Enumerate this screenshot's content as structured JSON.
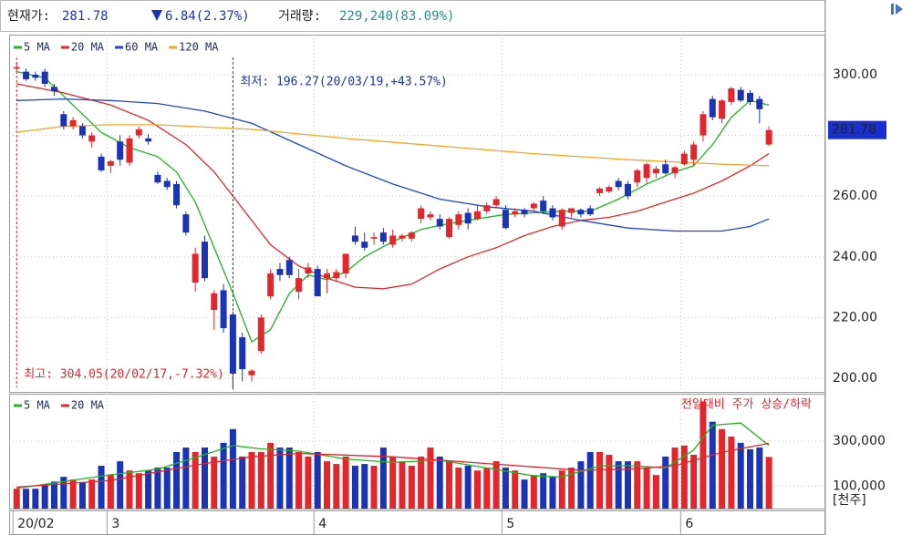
{
  "header": {
    "price_label": "현재가:",
    "change": "6.84(2.37%)",
    "volume_label": "거래량:",
    "volume": "229,240(83.09%)"
  },
  "chart_data": [
    {
      "type": "candlestick",
      "open": [
        302,
        301,
        300,
        301,
        296,
        287,
        283,
        283,
        278,
        273,
        270,
        278,
        271,
        280,
        279,
        267,
        265,
        264,
        254,
        231.5,
        245,
        222.5,
        229,
        221,
        213.5,
        201,
        209,
        227,
        236,
        239,
        228.5,
        234.5,
        236,
        233,
        233,
        234.5,
        247,
        245,
        246,
        248,
        244,
        246,
        246,
        252.5,
        253,
        252.5,
        246.5,
        250.5,
        254.5,
        252.5,
        255,
        257,
        255.5,
        254,
        255.5,
        256,
        258.5,
        256,
        250,
        254.5,
        255.5,
        256,
        261,
        261.5,
        265,
        264,
        264.5,
        266,
        267.5,
        270.5,
        267.5,
        270.5,
        272,
        280,
        292,
        285.5,
        291,
        295,
        294,
        292,
        277
      ],
      "high": [
        304.05,
        302,
        301,
        302,
        297,
        288,
        286,
        284,
        281,
        274,
        272,
        280,
        280,
        283,
        280.5,
        268,
        266,
        265,
        255,
        243,
        247,
        229,
        231,
        222,
        215,
        203,
        221,
        236,
        238,
        240,
        236,
        238,
        237,
        236,
        236,
        241,
        250,
        248,
        248,
        249.5,
        249,
        247.5,
        248.5,
        257,
        255,
        254,
        253,
        255,
        256,
        257,
        258,
        260,
        257,
        256,
        256,
        258,
        260,
        257,
        256,
        256,
        256,
        257,
        263,
        263.5,
        266,
        265,
        269,
        271,
        270,
        272,
        270,
        275,
        278,
        288,
        293,
        292,
        296,
        296,
        295,
        293,
        283
      ],
      "low": [
        301,
        298,
        298,
        296,
        293,
        282,
        282,
        279,
        276,
        268,
        267.5,
        270,
        270,
        279,
        277,
        264,
        262,
        256,
        247,
        228.5,
        232,
        216,
        215,
        196.27,
        199,
        199,
        208,
        226,
        232,
        233,
        226,
        233,
        227,
        228,
        232,
        233,
        244,
        242,
        244,
        244,
        243,
        245,
        245,
        251,
        252,
        249,
        246,
        249,
        249,
        252,
        254,
        256,
        249,
        253,
        253,
        255,
        254,
        252,
        249,
        253,
        253,
        253.5,
        260,
        261,
        262,
        259,
        263,
        264,
        266,
        267,
        266,
        270,
        270,
        278,
        285,
        284,
        290,
        291,
        290,
        284,
        276.5
      ],
      "close": [
        302.5,
        298.5,
        299,
        297,
        294.5,
        283,
        285,
        280,
        280,
        268.5,
        271.5,
        272,
        279,
        282,
        278,
        264.5,
        263,
        257,
        248,
        241,
        233,
        228,
        216.5,
        201.5,
        203,
        202.5,
        220,
        234.5,
        234,
        234,
        233,
        236.5,
        227,
        234.5,
        235,
        241,
        245,
        243,
        246.5,
        245,
        247,
        247,
        248,
        256,
        254,
        250,
        252.5,
        254,
        251,
        255,
        257,
        259,
        249.5,
        255,
        254,
        257.5,
        255,
        253,
        255.5,
        256,
        254,
        254,
        262.5,
        263,
        263,
        260,
        268.5,
        270.5,
        269,
        267.5,
        269.5,
        274,
        277,
        287,
        286,
        291.5,
        295.5,
        291.5,
        291,
        288.62,
        281.78
      ],
      "up_color": "#e3262c",
      "down_color": "#1b33b5",
      "series": [
        {
          "name": "5 MA",
          "color": "#1fb51f",
          "x": [
            0,
            3,
            6,
            9,
            12,
            15,
            17,
            19,
            21,
            23,
            25,
            27,
            29,
            31,
            33,
            35,
            37,
            40,
            43,
            46,
            49,
            52,
            55,
            58,
            61,
            64,
            67,
            70,
            72,
            74,
            76,
            78,
            80
          ],
          "values": [
            301,
            299,
            290,
            281,
            276,
            273,
            268,
            258,
            243,
            228,
            212,
            216,
            228,
            234,
            232.5,
            235,
            240,
            245,
            249,
            251,
            252.5,
            254,
            254.5,
            255,
            255,
            259,
            264,
            268,
            270,
            277,
            286,
            291.5,
            290
          ]
        },
        {
          "name": "20 MA",
          "color": "#e3262c",
          "x": [
            0,
            5,
            10,
            14,
            18,
            21,
            24,
            27,
            30,
            33,
            36,
            39,
            42,
            45,
            48,
            51,
            54,
            57,
            60,
            63,
            66,
            69,
            72,
            75,
            78,
            80
          ],
          "values": [
            297,
            294,
            290,
            285,
            277,
            268,
            256,
            244,
            237,
            233,
            230,
            229.5,
            231,
            236,
            240,
            243,
            247,
            250,
            252,
            253,
            255,
            258,
            261,
            265,
            270,
            274
          ]
        },
        {
          "name": "60 MA",
          "color": "#2146c7",
          "x": [
            0,
            5,
            10,
            15,
            20,
            25,
            30,
            35,
            40,
            45,
            50,
            55,
            60,
            65,
            70,
            75,
            78,
            80
          ],
          "values": [
            291.5,
            292,
            291.5,
            290.5,
            288,
            284,
            277,
            270,
            264,
            259,
            256.5,
            255,
            252,
            249.5,
            248.5,
            248.5,
            250,
            252.5
          ]
        },
        {
          "name": "120 MA",
          "color": "#f5a623",
          "x": [
            0,
            5,
            10,
            15,
            25,
            35,
            45,
            55,
            65,
            75,
            80
          ],
          "values": [
            281,
            283,
            283.5,
            283.5,
            282,
            279,
            276.5,
            274,
            272,
            270.5,
            270
          ]
        }
      ],
      "xlim": [
        -0.8,
        86
      ],
      "ylim": [
        195.5,
        313.2
      ],
      "yticks": [
        {
          "value": 200,
          "label": "200.00"
        },
        {
          "value": 220,
          "label": "220.00"
        },
        {
          "value": 240,
          "label": "240.00"
        },
        {
          "value": 260,
          "label": "260.00"
        },
        {
          "value": 280,
          "label": "280.00"
        },
        {
          "value": 300,
          "label": "300.00"
        }
      ],
      "xticks": [
        {
          "value": 0,
          "label": "20/02"
        },
        {
          "value": 10,
          "label": "3"
        },
        {
          "value": 32,
          "label": "4"
        },
        {
          "value": 52,
          "label": "5"
        },
        {
          "value": 71,
          "label": "6"
        }
      ],
      "current_price": 281.78,
      "current_color": "#1a2fd0",
      "annotations": [
        {
          "text": "최저: 196.27(20/03/19,+43.57%)",
          "x": 23,
          "color": "#1b33b5"
        },
        {
          "text": "최고: 304.05(20/02/17,-7.32%)",
          "x": 0,
          "color": "#e3262c"
        }
      ],
      "grid": true
    },
    {
      "type": "bar",
      "values": [
        88000,
        88000,
        88000,
        108000,
        120000,
        141000,
        129000,
        116000,
        129000,
        190000,
        149000,
        210000,
        169000,
        157000,
        169000,
        182000,
        182000,
        251000,
        271000,
        251000,
        271000,
        231000,
        292000,
        353000,
        231000,
        251000,
        251000,
        292000,
        271000,
        271000,
        251000,
        231000,
        251000,
        210000,
        198000,
        231000,
        190000,
        198000,
        190000,
        271000,
        231000,
        210000,
        190000,
        231000,
        271000,
        231000,
        210000,
        182000,
        190000,
        169000,
        182000,
        210000,
        182000,
        169000,
        129000,
        149000,
        157000,
        141000,
        169000,
        182000,
        210000,
        251000,
        251000,
        239000,
        210000,
        210000,
        210000,
        182000,
        149000,
        231000,
        271000,
        280000,
        239000,
        476000,
        386000,
        353000,
        320000,
        292000,
        263000,
        271000,
        229240
      ],
      "series": [
        {
          "name": "5 MA",
          "color": "#1fb51f",
          "x": [
            0,
            5,
            10,
            15,
            20,
            23,
            26,
            30,
            35,
            40,
            45,
            50,
            55,
            58,
            62,
            66,
            69,
            72,
            74,
            77,
            80
          ],
          "values": [
            90000,
            120000,
            150000,
            175000,
            240000,
            280000,
            265000,
            255000,
            220000,
            205000,
            215000,
            180000,
            145000,
            140000,
            190000,
            190000,
            180000,
            260000,
            370000,
            380000,
            280000
          ]
        },
        {
          "name": "20 MA",
          "color": "#e3262c",
          "x": [
            0,
            10,
            20,
            25,
            30,
            40,
            50,
            60,
            65,
            70,
            75,
            80
          ],
          "values": [
            95000,
            125000,
            200000,
            230000,
            245000,
            230000,
            200000,
            170000,
            175000,
            190000,
            250000,
            290000
          ]
        }
      ],
      "xlim": [
        -0.8,
        86
      ],
      "ylim": [
        0,
        510000
      ],
      "yticks": [
        {
          "value": 100000,
          "label": "100,000"
        },
        {
          "value": 300000,
          "label": "300,000"
        }
      ],
      "note": "전일대비 주가 상승/하락",
      "unit": "[천주]",
      "grid": true
    }
  ]
}
